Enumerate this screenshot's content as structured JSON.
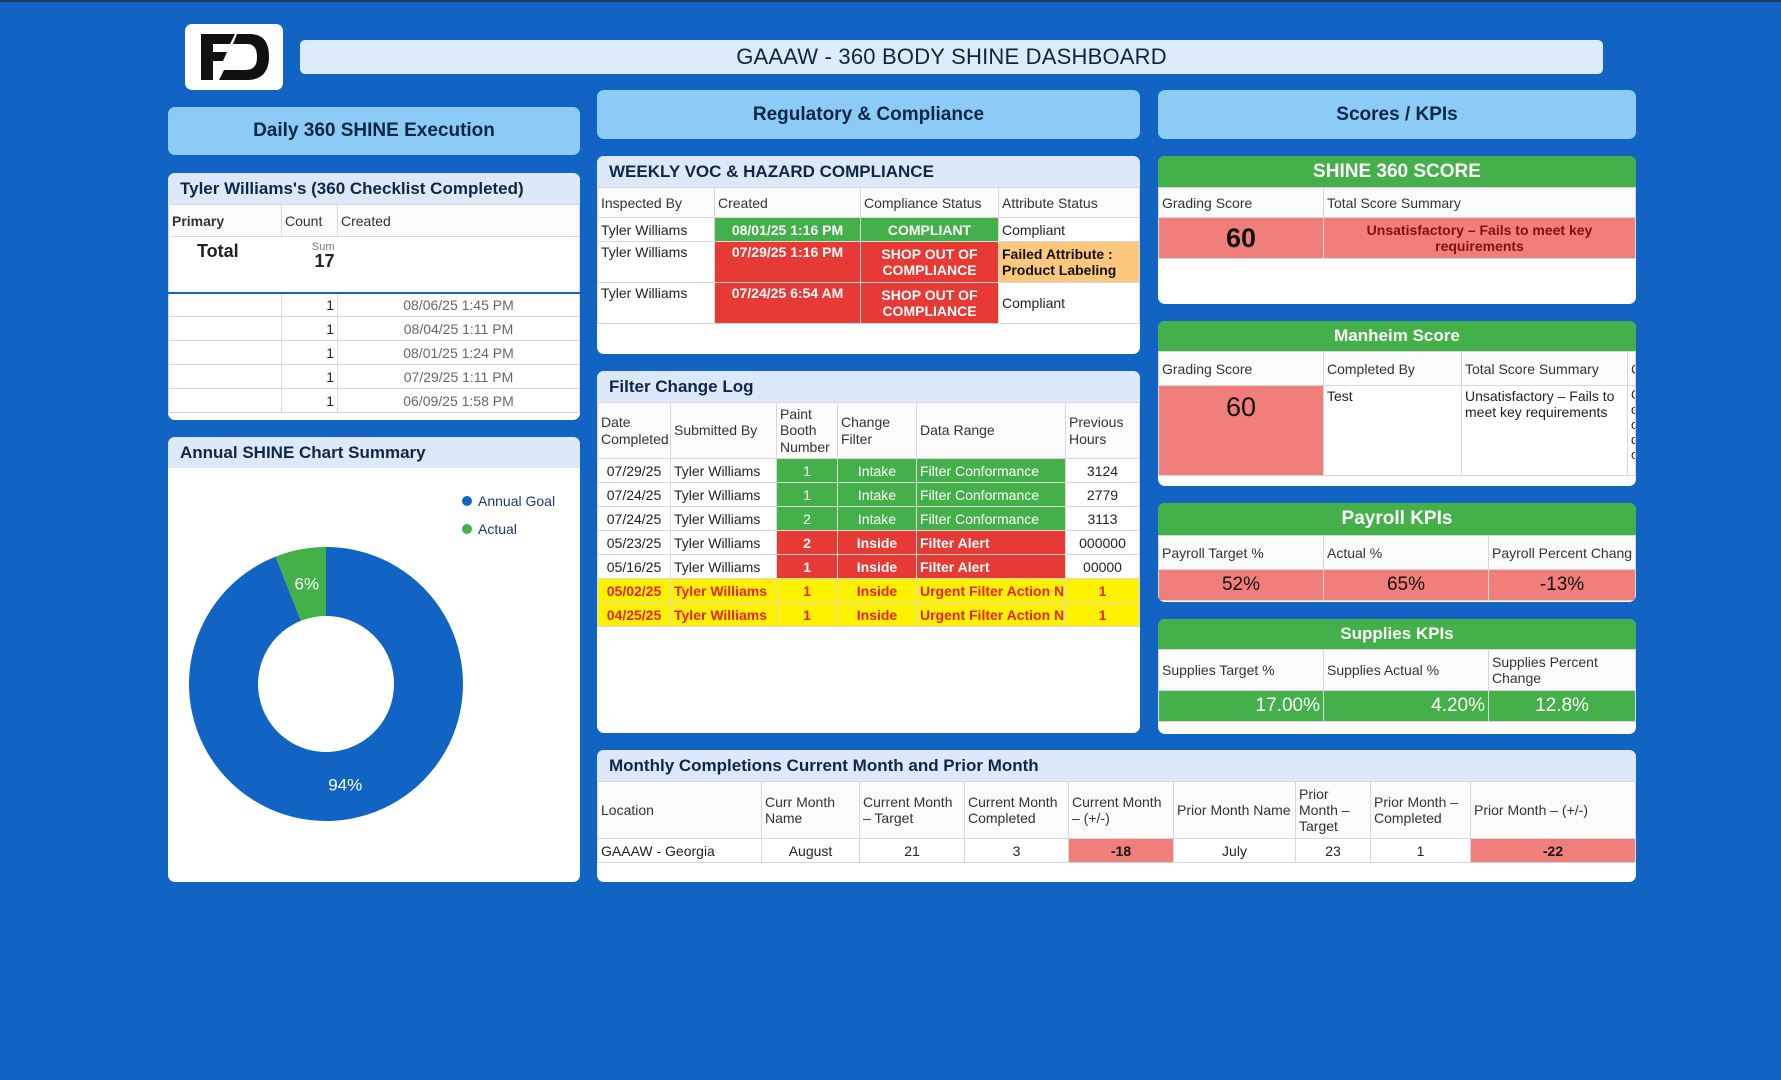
{
  "header": {
    "title": "GAAAW - 360 BODY SHINE DASHBOARD",
    "logo_text": "FD"
  },
  "sections": {
    "daily": "Daily 360 SHINE Execution",
    "regulatory": "Regulatory & Compliance",
    "scores": "Scores / KPIs"
  },
  "checklist": {
    "title": "Tyler Williams's (360 Checklist Completed)",
    "headers": [
      "Primary",
      "Count",
      "Created"
    ],
    "total_label": "Total",
    "sum_label": "Sum",
    "sum_value": "17",
    "rows": [
      {
        "count": "1",
        "created": "08/06/25 1:45 PM"
      },
      {
        "count": "1",
        "created": "08/04/25 1:11 PM"
      },
      {
        "count": "1",
        "created": "08/01/25 1:24 PM"
      },
      {
        "count": "1",
        "created": "07/29/25 1:11 PM"
      },
      {
        "count": "1",
        "created": "06/09/25 1:58 PM"
      }
    ]
  },
  "annual_chart": {
    "title": "Annual SHINE Chart Summary",
    "legend": [
      {
        "label": "Annual Goal",
        "color": "#1163c4"
      },
      {
        "label": "Actual",
        "color": "#43b04a"
      }
    ],
    "labels": {
      "goal": "94%",
      "actual": "6%"
    }
  },
  "chart_data": {
    "type": "pie",
    "categories": [
      "Annual Goal",
      "Actual"
    ],
    "values": [
      94,
      6
    ],
    "title": "Annual SHINE Chart Summary"
  },
  "voc": {
    "title": "WEEKLY VOC & HAZARD COMPLIANCE",
    "headers": [
      "Inspected By",
      "Created",
      "Compliance Status",
      "Attribute Status"
    ],
    "rows": [
      {
        "by": "Tyler Williams",
        "created": "08/01/25 1:16 PM",
        "status": "COMPLIANT",
        "attr": "Compliant"
      },
      {
        "by": "Tyler Williams",
        "created": "07/29/25 1:16 PM",
        "status": "SHOP OUT OF COMPLIANCE",
        "attr": "Failed Attribute : Product Labeling"
      },
      {
        "by": "Tyler Williams",
        "created": "07/24/25 6:54 AM",
        "status": "SHOP OUT OF COMPLIANCE",
        "attr": "Compliant"
      }
    ]
  },
  "filter": {
    "title": "Filter Change Log",
    "headers": [
      "Date Completed",
      "Submitted By",
      "Paint Booth Number",
      "Change Filter",
      "Data Range",
      "Previous Hours"
    ],
    "rows": [
      {
        "date": "07/29/25",
        "by": "Tyler Williams",
        "booth": "1",
        "change": "Intake",
        "range": "Filter Conformance",
        "hours": "3124"
      },
      {
        "date": "07/24/25",
        "by": "Tyler Williams",
        "booth": "1",
        "change": "Intake",
        "range": "Filter Conformance",
        "hours": "2779"
      },
      {
        "date": "07/24/25",
        "by": "Tyler Williams",
        "booth": "2",
        "change": "Intake",
        "range": "Filter Conformance",
        "hours": "3113"
      },
      {
        "date": "05/23/25",
        "by": "Tyler Williams",
        "booth": "2",
        "change": "Inside",
        "range": "Filter Alert",
        "hours": "000000"
      },
      {
        "date": "05/16/25",
        "by": "Tyler Williams",
        "booth": "1",
        "change": "Inside",
        "range": "Filter Alert",
        "hours": "00000"
      },
      {
        "date": "05/02/25",
        "by": "Tyler Williams",
        "booth": "1",
        "change": "Inside",
        "range": "Urgent Filter Action N",
        "hours": "1"
      },
      {
        "date": "04/25/25",
        "by": "Tyler Williams",
        "booth": "1",
        "change": "Inside",
        "range": "Urgent Filter Action N",
        "hours": "1"
      }
    ]
  },
  "monthly": {
    "title": "Monthly Completions Current Month and Prior Month",
    "headers": [
      "Location",
      "Curr Month Name",
      "Current Month – Target",
      "Current Month Completed",
      "Current Month – (+/-)",
      "Prior Month Name",
      "Prior Month – Target",
      "Prior Month – Completed",
      "Prior Month – (+/-)"
    ],
    "row": [
      "GAAAW - Georgia",
      "August",
      "21",
      "3",
      "-18",
      "July",
      "23",
      "1",
      "-22"
    ]
  },
  "shine360": {
    "title": "SHINE 360  SCORE",
    "headers": [
      "Grading Score",
      "Total Score Summary"
    ],
    "score": "60",
    "summary": "Unsatisfactory – Fails to meet key requirements"
  },
  "manheim": {
    "title": "Manheim Score",
    "headers": [
      "Grading Score",
      "Completed By",
      "Total Score Summary",
      "C"
    ],
    "score": "60",
    "completed_by": "Test",
    "summary": "Unsatisfactory – Fails to meet key requirements",
    "extra": "C\nc\nc\nd\nc"
  },
  "payroll": {
    "title": "Payroll KPIs",
    "headers": [
      "Payroll Target %",
      "Actual %",
      "Payroll Percent Chang"
    ],
    "values": [
      "52%",
      "65%",
      "-13%"
    ]
  },
  "supplies": {
    "title": "Supplies KPIs",
    "headers": [
      "Supplies Target %",
      "Supplies Actual %",
      "Supplies Percent Change"
    ],
    "values": [
      "17.00%",
      "4.20%",
      "12.8%"
    ]
  }
}
